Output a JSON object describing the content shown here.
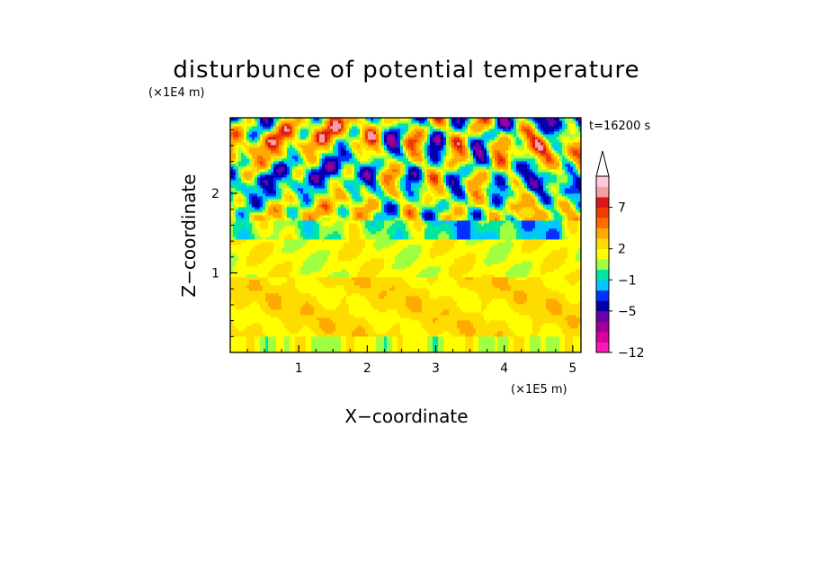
{
  "chart_data": {
    "type": "heatmap",
    "title": "disturbunce of potential temperature",
    "xlabel": "X−coordinate",
    "ylabel": "Z−coordinate",
    "x_unit": "(×1E5 m)",
    "y_unit": "(×1E4 m)",
    "time_label": "t=16200 s",
    "xlim": [
      0,
      5.12
    ],
    "ylim": [
      0,
      2.95
    ],
    "x_ticks": [
      1,
      2,
      3,
      4,
      5
    ],
    "x_tick_labels": [
      "1",
      "2",
      "3",
      "4",
      "5"
    ],
    "y_ticks": [
      1,
      2
    ],
    "y_tick_labels": [
      "1",
      "2"
    ],
    "colorbar": {
      "levels": [
        -12,
        -10,
        -8,
        -6,
        -5,
        -3,
        -2,
        -1,
        0,
        1,
        2,
        3,
        5,
        6,
        7,
        8,
        10,
        12
      ],
      "colors": [
        "#ff18b4",
        "#d8009e",
        "#9c0096",
        "#6a00a8",
        "#0000aa",
        "#0032ff",
        "#00c8ff",
        "#00e6a0",
        "#a0ff40",
        "#ffff00",
        "#ffdc00",
        "#ffaa00",
        "#ff6e00",
        "#f03c00",
        "#d81818",
        "#f8a0a0",
        "#ffc8dc"
      ],
      "labeled_values": [
        7,
        2,
        -1,
        -5,
        -12
      ],
      "labels": [
        "7",
        "2",
        "−1",
        "−5",
        "−12"
      ],
      "extend": "max"
    },
    "description_bands": [
      {
        "z_range": [
          0.0,
          0.2
        ],
        "dominant_range": [
          0,
          2
        ]
      },
      {
        "z_range": [
          0.2,
          0.9
        ],
        "dominant_range": [
          2,
          3
        ]
      },
      {
        "z_range": [
          0.9,
          1.5
        ],
        "dominant_range": [
          0,
          2
        ]
      },
      {
        "z_range": [
          1.5,
          2.95
        ],
        "dominant_range": [
          -6,
          7
        ]
      }
    ]
  }
}
